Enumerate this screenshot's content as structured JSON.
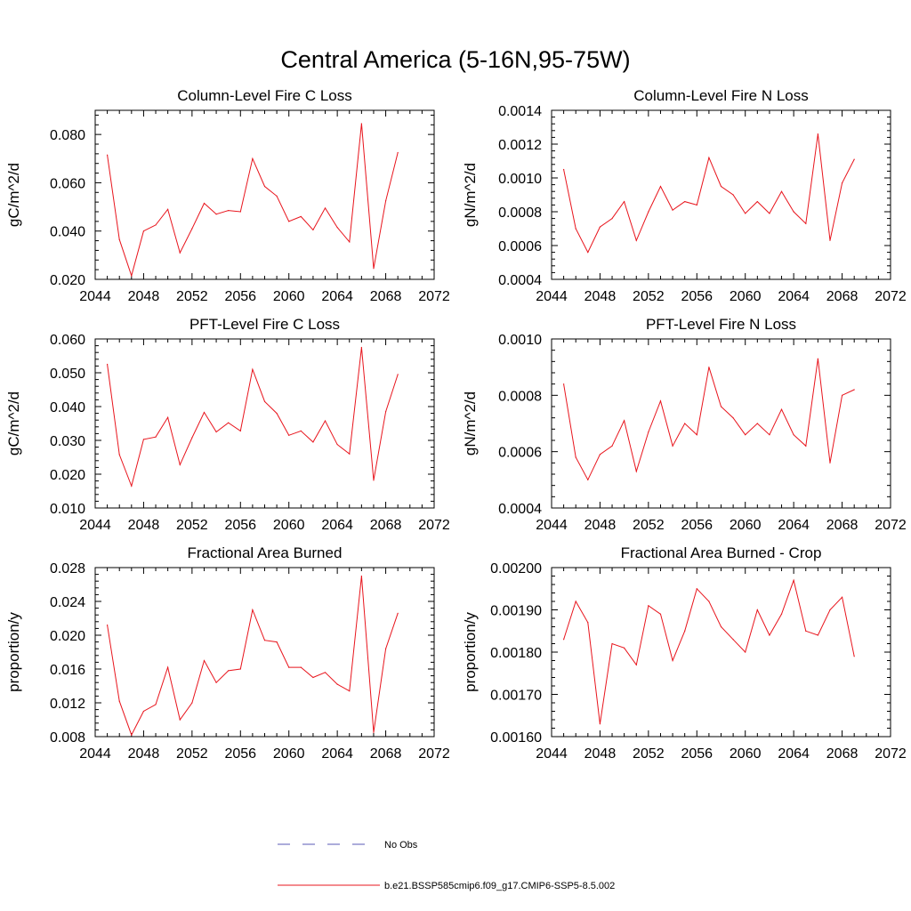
{
  "main_title": "Central America (5-16N,95-75W)",
  "colors": {
    "model": "#e8141c",
    "obs": "#5a5ab4",
    "axis": "#000000"
  },
  "legend": [
    {
      "label": "No Obs",
      "color": "#5a5ab4",
      "style": "dashed"
    },
    {
      "label": "b.e21.BSSP585cmip6.f09_g17.CMIP6-SSP5-8.5.002",
      "color": "#e8141c",
      "style": "solid"
    }
  ],
  "chart_data": [
    {
      "type": "line",
      "title": "Column-Level Fire C Loss",
      "xlabel": "",
      "ylabel": "gC/m^2/d",
      "xlim": [
        2044,
        2072
      ],
      "ylim": [
        0.02,
        0.09
      ],
      "xticks": [
        "2044",
        "2048",
        "2052",
        "2056",
        "2060",
        "2064",
        "2068",
        "2072"
      ],
      "yticks": [
        "0.020",
        "0.040",
        "0.060",
        "0.080"
      ],
      "x": [
        2045,
        2046,
        2047,
        2048,
        2049,
        2050,
        2051,
        2052,
        2053,
        2054,
        2055,
        2056,
        2057,
        2058,
        2059,
        2060,
        2061,
        2062,
        2063,
        2064,
        2065,
        2066,
        2067,
        2068,
        2069
      ],
      "series": [
        {
          "values": [
            0.0715,
            0.0365,
            0.0215,
            0.04,
            0.0425,
            0.049,
            0.031,
            0.041,
            0.0515,
            0.047,
            0.0485,
            0.048,
            0.07,
            0.0585,
            0.0545,
            0.044,
            0.046,
            0.0405,
            0.0495,
            0.0415,
            0.0355,
            0.0845,
            0.0245,
            0.0525,
            0.0725
          ]
        }
      ]
    },
    {
      "type": "line",
      "title": "Column-Level Fire N Loss",
      "xlabel": "",
      "ylabel": "gN/m^2/d",
      "xlim": [
        2044,
        2072
      ],
      "ylim": [
        0.0004,
        0.0014
      ],
      "xticks": [
        "2044",
        "2048",
        "2052",
        "2056",
        "2060",
        "2064",
        "2068",
        "2072"
      ],
      "yticks": [
        "0.0004",
        "0.0006",
        "0.0008",
        "0.0010",
        "0.0012",
        "0.0014"
      ],
      "x": [
        2045,
        2046,
        2047,
        2048,
        2049,
        2050,
        2051,
        2052,
        2053,
        2054,
        2055,
        2056,
        2057,
        2058,
        2059,
        2060,
        2061,
        2062,
        2063,
        2064,
        2065,
        2066,
        2067,
        2068,
        2069
      ],
      "series": [
        {
          "values": [
            0.00105,
            0.0007,
            0.00056,
            0.00071,
            0.00076,
            0.00086,
            0.00063,
            0.0008,
            0.00095,
            0.00081,
            0.00086,
            0.00084,
            0.00112,
            0.00095,
            0.0009,
            0.00079,
            0.00086,
            0.00079,
            0.00092,
            0.0008,
            0.00073,
            0.00126,
            0.00063,
            0.00097,
            0.00111
          ]
        }
      ]
    },
    {
      "type": "line",
      "title": "PFT-Level Fire C Loss",
      "xlabel": "",
      "ylabel": "gC/m^2/d",
      "xlim": [
        2044,
        2072
      ],
      "ylim": [
        0.01,
        0.06
      ],
      "xticks": [
        "2044",
        "2048",
        "2052",
        "2056",
        "2060",
        "2064",
        "2068",
        "2072"
      ],
      "yticks": [
        "0.010",
        "0.020",
        "0.030",
        "0.040",
        "0.050",
        "0.060"
      ],
      "x": [
        2045,
        2046,
        2047,
        2048,
        2049,
        2050,
        2051,
        2052,
        2053,
        2054,
        2055,
        2056,
        2057,
        2058,
        2059,
        2060,
        2061,
        2062,
        2063,
        2064,
        2065,
        2066,
        2067,
        2068,
        2069
      ],
      "series": [
        {
          "values": [
            0.0525,
            0.0258,
            0.0165,
            0.0303,
            0.031,
            0.0368,
            0.0228,
            0.0308,
            0.0383,
            0.0325,
            0.0352,
            0.0328,
            0.051,
            0.0415,
            0.038,
            0.0315,
            0.0328,
            0.0295,
            0.0358,
            0.0288,
            0.026,
            0.0575,
            0.0182,
            0.0385,
            0.0495
          ]
        }
      ]
    },
    {
      "type": "line",
      "title": "PFT-Level Fire N Loss",
      "xlabel": "",
      "ylabel": "gN/m^2/d",
      "xlim": [
        2044,
        2072
      ],
      "ylim": [
        0.0004,
        0.001
      ],
      "xticks": [
        "2044",
        "2048",
        "2052",
        "2056",
        "2060",
        "2064",
        "2068",
        "2072"
      ],
      "yticks": [
        "0.0004",
        "0.0006",
        "0.0008",
        "0.0010"
      ],
      "x": [
        2045,
        2046,
        2047,
        2048,
        2049,
        2050,
        2051,
        2052,
        2053,
        2054,
        2055,
        2056,
        2057,
        2058,
        2059,
        2060,
        2061,
        2062,
        2063,
        2064,
        2065,
        2066,
        2067,
        2068,
        2069
      ],
      "series": [
        {
          "values": [
            0.00084,
            0.00058,
            0.0005,
            0.00059,
            0.00062,
            0.00071,
            0.00053,
            0.00067,
            0.00078,
            0.00062,
            0.0007,
            0.00066,
            0.0009,
            0.00076,
            0.00072,
            0.00066,
            0.0007,
            0.00066,
            0.00075,
            0.00066,
            0.00062,
            0.00093,
            0.00056,
            0.0008,
            0.00082
          ]
        }
      ]
    },
    {
      "type": "line",
      "title": "Fractional Area Burned",
      "xlabel": "",
      "ylabel": "proportion/y",
      "xlim": [
        2044,
        2072
      ],
      "ylim": [
        0.008,
        0.028
      ],
      "xticks": [
        "2044",
        "2048",
        "2052",
        "2056",
        "2060",
        "2064",
        "2068",
        "2072"
      ],
      "yticks": [
        "0.008",
        "0.012",
        "0.016",
        "0.020",
        "0.024",
        "0.028"
      ],
      "x": [
        2045,
        2046,
        2047,
        2048,
        2049,
        2050,
        2051,
        2052,
        2053,
        2054,
        2055,
        2056,
        2057,
        2058,
        2059,
        2060,
        2061,
        2062,
        2063,
        2064,
        2065,
        2066,
        2067,
        2068,
        2069
      ],
      "series": [
        {
          "values": [
            0.0212,
            0.0122,
            0.0082,
            0.011,
            0.0118,
            0.0162,
            0.01,
            0.012,
            0.017,
            0.0144,
            0.0158,
            0.016,
            0.023,
            0.0194,
            0.0192,
            0.0162,
            0.0162,
            0.015,
            0.0156,
            0.0142,
            0.0134,
            0.027,
            0.0085,
            0.0184,
            0.0226
          ]
        }
      ]
    },
    {
      "type": "line",
      "title": "Fractional Area Burned - Crop",
      "xlabel": "",
      "ylabel": "proportion/y",
      "xlim": [
        2044,
        2072
      ],
      "ylim": [
        0.0016,
        0.002
      ],
      "xticks": [
        "2044",
        "2048",
        "2052",
        "2056",
        "2060",
        "2064",
        "2068",
        "2072"
      ],
      "yticks": [
        "0.00160",
        "0.00170",
        "0.00180",
        "0.00190",
        "0.00200"
      ],
      "x": [
        2045,
        2046,
        2047,
        2048,
        2049,
        2050,
        2051,
        2052,
        2053,
        2054,
        2055,
        2056,
        2057,
        2058,
        2059,
        2060,
        2061,
        2062,
        2063,
        2064,
        2065,
        2066,
        2067,
        2068,
        2069
      ],
      "series": [
        {
          "values": [
            0.00183,
            0.00192,
            0.00187,
            0.00163,
            0.00182,
            0.00181,
            0.00177,
            0.00191,
            0.00189,
            0.00178,
            0.00185,
            0.00195,
            0.00192,
            0.00186,
            0.00183,
            0.0018,
            0.0019,
            0.00184,
            0.00189,
            0.00197,
            0.00185,
            0.00184,
            0.0019,
            0.00193,
            0.00179
          ]
        }
      ]
    }
  ]
}
